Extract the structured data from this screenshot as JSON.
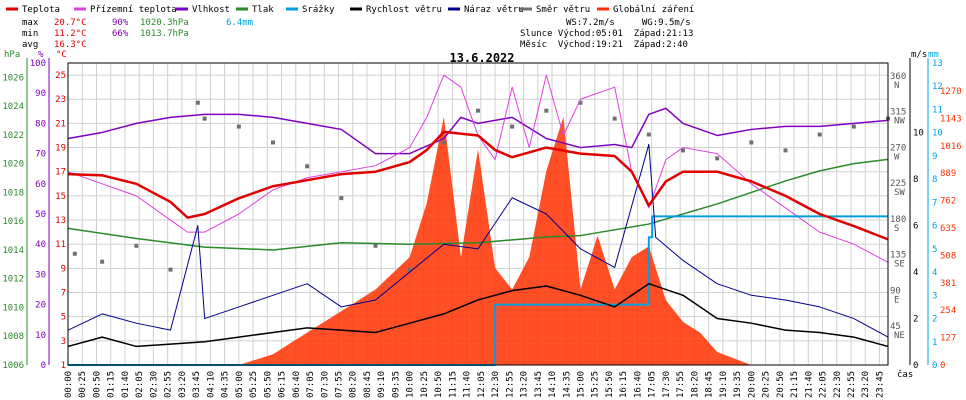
{
  "chart_data": {
    "type": "line",
    "title": "13.6.2022",
    "x_axis_label": "čas",
    "legend": [
      {
        "label": "Teplota",
        "color": "#e00000"
      },
      {
        "label": "Přízemní teplota",
        "color": "#e040e0"
      },
      {
        "label": "Vlhkost",
        "color": "#8000c0"
      },
      {
        "label": "Tlak",
        "color": "#2a8a2a"
      },
      {
        "label": "Srážky",
        "color": "#00a0e0"
      },
      {
        "label": "Rychlost větru",
        "color": "#000000"
      },
      {
        "label": "Náraz větru",
        "color": "#000090"
      },
      {
        "label": "Směr větru",
        "color": "#707070"
      },
      {
        "label": "Globální záření",
        "color": "#ff3000"
      }
    ],
    "stats": {
      "max_label": "max",
      "min_label": "min",
      "avg_label": "avg",
      "max_temp": "20.7°C",
      "max_hum": "90%",
      "max_press": "1020.3hPa",
      "max_rain": "6.4mm",
      "min_temp": "11.2°C",
      "min_hum": "66%",
      "min_press": "1013.7hPa",
      "avg_temp": "16.3°C"
    },
    "info": {
      "line1": "WS:7.2m/s     WG:9.5m/s",
      "line2": "Slunce Východ:05:01  Západ:21:13",
      "line3": "Měsíc  Východ:19:21  Západ:2:40"
    },
    "axes": {
      "hpa": {
        "label": "hPa",
        "ticks": [
          "1026",
          "1024",
          "1022",
          "1020",
          "1018",
          "1016",
          "1014",
          "1012",
          "1010",
          "1008",
          "1006"
        ],
        "range": [
          1006,
          1027
        ]
      },
      "pct": {
        "label": "%",
        "ticks": [
          "100",
          "90",
          "80",
          "70",
          "60",
          "50",
          "40",
          "30",
          "20",
          "10",
          "0"
        ],
        "range": [
          0,
          100
        ]
      },
      "degc": {
        "label": "°C",
        "ticks": [
          "25",
          "23",
          "21",
          "19",
          "17",
          "15",
          "13",
          "11",
          "9",
          "7",
          "5",
          "3",
          "1"
        ],
        "range": [
          1,
          26
        ]
      },
      "ms": {
        "label": "m/s",
        "ticks": [
          "10",
          "8",
          "6",
          "4",
          "2",
          "0"
        ],
        "range": [
          0,
          13
        ]
      },
      "mm": {
        "label": "mm",
        "ticks": [
          "13",
          "12",
          "11",
          "10",
          "9",
          "8",
          "7",
          "6",
          "5",
          "4",
          "3",
          "2",
          "1",
          "0"
        ],
        "range": [
          0,
          13
        ]
      },
      "wdir": {
        "ticks": [
          {
            "value": "360",
            "dir": "N"
          },
          {
            "value": "315",
            "dir": "NW"
          },
          {
            "value": "270",
            "dir": "W"
          },
          {
            "value": "225",
            "dir": "SW"
          },
          {
            "value": "180",
            "dir": "S"
          },
          {
            "value": "135",
            "dir": "SE"
          },
          {
            "value": "90",
            "dir": "E"
          },
          {
            "value": "45",
            "dir": "NE"
          }
        ]
      },
      "rad": {
        "ticks": [
          "1270",
          "1143",
          "1016",
          "889",
          "762",
          "635",
          "508",
          "381",
          "254",
          "127",
          "0"
        ],
        "range": [
          0,
          1400
        ]
      }
    },
    "x_ticks": [
      "00:00",
      "00:25",
      "00:50",
      "01:15",
      "01:40",
      "02:05",
      "02:30",
      "02:55",
      "03:20",
      "03:45",
      "04:10",
      "04:35",
      "05:00",
      "05:25",
      "05:50",
      "06:15",
      "06:40",
      "07:05",
      "07:30",
      "07:55",
      "08:20",
      "08:45",
      "09:10",
      "09:35",
      "10:00",
      "10:25",
      "10:50",
      "11:15",
      "11:40",
      "12:05",
      "12:30",
      "12:55",
      "13:20",
      "13:45",
      "14:10",
      "14:35",
      "15:00",
      "15:25",
      "15:50",
      "16:15",
      "16:40",
      "17:05",
      "17:30",
      "17:55",
      "18:20",
      "18:45",
      "19:10",
      "19:35",
      "20:00",
      "20:25",
      "20:50",
      "21:15",
      "21:40",
      "22:05",
      "22:30",
      "22:55",
      "23:20",
      "23:45"
    ],
    "series": [
      {
        "name": "Teplota",
        "unit": "°C",
        "x_hours": [
          0,
          1,
          2,
          3,
          3.5,
          4,
          5,
          6,
          7,
          8,
          9,
          10,
          10.5,
          11,
          12,
          12.5,
          13,
          14,
          15,
          16,
          16.5,
          17,
          17.5,
          18,
          19,
          20,
          21,
          22,
          23,
          24
        ],
        "values": [
          16.8,
          16.7,
          16.0,
          14.5,
          13.2,
          13.5,
          14.8,
          15.8,
          16.3,
          16.8,
          17.0,
          17.8,
          18.8,
          20.3,
          20.0,
          18.8,
          18.2,
          19.0,
          18.5,
          18.3,
          17.0,
          14.2,
          16.2,
          17.0,
          17.0,
          16.2,
          15.0,
          13.5,
          12.5,
          11.4
        ]
      },
      {
        "name": "Přízemní teplota",
        "unit": "°C",
        "x_hours": [
          0,
          1,
          2,
          3,
          3.5,
          4,
          5,
          6,
          7,
          8,
          9,
          10,
          10.5,
          11,
          11.5,
          12,
          12.5,
          13,
          13.5,
          14,
          14.5,
          15,
          16,
          16.5,
          17,
          17.5,
          18,
          19,
          20,
          21,
          22,
          23,
          24
        ],
        "values": [
          17.0,
          16.0,
          15.0,
          13.0,
          12.0,
          12.0,
          13.5,
          15.5,
          16.5,
          17.0,
          17.5,
          19.0,
          21.5,
          25.0,
          24.0,
          20.0,
          18.0,
          24.0,
          19.0,
          25.0,
          20.0,
          23.0,
          24.0,
          17.0,
          14.0,
          18.0,
          19.0,
          18.5,
          16.0,
          14.0,
          12.0,
          11.0,
          9.5
        ]
      },
      {
        "name": "Vlhkost",
        "unit": "%",
        "x_hours": [
          0,
          1,
          2,
          3,
          4,
          5,
          6,
          7,
          8,
          9,
          10,
          11,
          11.5,
          12,
          13,
          14,
          15,
          16,
          16.5,
          17,
          17.5,
          18,
          19,
          20,
          21,
          22,
          23,
          24
        ],
        "values": [
          75,
          77,
          80,
          82,
          83,
          83,
          82,
          80,
          78,
          70,
          70,
          75,
          82,
          80,
          82,
          75,
          72,
          73,
          72,
          83,
          85,
          80,
          76,
          78,
          79,
          79,
          80,
          81
        ]
      },
      {
        "name": "Tlak",
        "unit": "hPa",
        "x_hours": [
          0,
          2,
          4,
          6,
          8,
          10,
          12,
          14,
          15,
          16,
          17,
          18,
          19,
          20,
          21,
          22,
          23,
          24
        ],
        "values": [
          1015.5,
          1014.8,
          1014.2,
          1014.0,
          1014.5,
          1014.4,
          1014.5,
          1014.9,
          1015.0,
          1015.4,
          1015.8,
          1016.5,
          1017.2,
          1018.0,
          1018.8,
          1019.5,
          1020.0,
          1020.3
        ]
      },
      {
        "name": "Srážky",
        "unit": "mm",
        "x_hours": [
          0,
          12.4,
          12.5,
          16.9,
          17.0,
          17.1,
          24
        ],
        "values": [
          0,
          0,
          2.6,
          2.6,
          5.5,
          6.4,
          6.4
        ]
      },
      {
        "name": "Rychlost větru",
        "unit": "m/s",
        "x_hours": [
          0,
          1,
          2,
          3,
          4,
          5,
          6,
          7,
          8,
          9,
          10,
          11,
          12,
          13,
          14,
          15,
          16,
          17,
          18,
          19,
          20,
          21,
          22,
          23,
          24
        ],
        "values": [
          0.8,
          1.2,
          0.8,
          0.9,
          1.0,
          1.2,
          1.4,
          1.6,
          1.5,
          1.4,
          1.8,
          2.2,
          2.8,
          3.2,
          3.4,
          3.0,
          2.5,
          3.5,
          3.0,
          2.0,
          1.8,
          1.5,
          1.4,
          1.2,
          0.8
        ]
      },
      {
        "name": "Náraz větru",
        "unit": "m/s",
        "x_hours": [
          0,
          1,
          2,
          3,
          3.8,
          4,
          5,
          6,
          7,
          8,
          9,
          10,
          11,
          12,
          13,
          14,
          15,
          16,
          17,
          17.2,
          18,
          19,
          20,
          21,
          22,
          23,
          24
        ],
        "values": [
          1.5,
          2.2,
          1.8,
          1.5,
          6.0,
          2.0,
          2.5,
          3.0,
          3.5,
          2.5,
          2.8,
          4.0,
          5.2,
          5.0,
          7.2,
          6.5,
          5.0,
          4.2,
          9.5,
          5.5,
          4.5,
          3.5,
          3.0,
          2.8,
          2.5,
          2.0,
          1.2
        ]
      },
      {
        "name": "Směr větru",
        "unit": "°",
        "x_hours": [
          0.2,
          1,
          2,
          3,
          3.8,
          4,
          5,
          6,
          7,
          8,
          9,
          10,
          11,
          12,
          13,
          14,
          15,
          16,
          17,
          18,
          19,
          20,
          21,
          22,
          23,
          24
        ],
        "values": [
          140,
          130,
          150,
          120,
          330,
          310,
          300,
          280,
          250,
          210,
          150,
          120,
          280,
          320,
          300,
          320,
          330,
          310,
          290,
          270,
          260,
          280,
          270,
          290,
          300,
          310
        ]
      },
      {
        "name": "Globální záření",
        "unit": "W/m²",
        "x_hours": [
          0,
          5,
          6,
          7,
          8,
          9,
          10,
          10.5,
          11,
          11.5,
          12,
          12.5,
          13,
          13.5,
          14,
          14.5,
          15,
          15.5,
          16,
          16.5,
          17,
          17.5,
          18,
          18.5,
          19,
          20,
          24
        ],
        "values": [
          0,
          0,
          50,
          150,
          250,
          350,
          500,
          750,
          1150,
          500,
          1000,
          450,
          350,
          500,
          900,
          1150,
          350,
          600,
          350,
          500,
          550,
          300,
          200,
          150,
          60,
          0,
          0
        ]
      }
    ]
  }
}
